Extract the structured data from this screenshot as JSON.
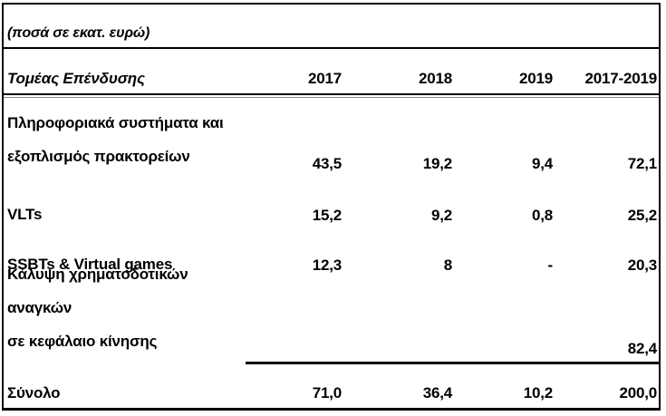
{
  "table": {
    "unit_note": "(ποσά σε εκατ. ευρώ)",
    "header": {
      "label": "Τομέας Επένδυσης",
      "columns": [
        "2017",
        "2018",
        "2019",
        "2017-2019"
      ]
    },
    "rows": [
      {
        "label_lines": [
          "Πληροφοριακά συστήματα και",
          "εξοπλισμός πρακτορείων"
        ],
        "values": [
          "43,5",
          "19,2",
          "9,4",
          "72,1"
        ]
      },
      {
        "label_lines": [
          "VLTs"
        ],
        "values": [
          "15,2",
          "9,2",
          "0,8",
          "25,2"
        ]
      },
      {
        "label_lines": [
          "SSBTs & Virtual games"
        ],
        "values": [
          "12,3",
          "8",
          "-",
          "20,3"
        ]
      },
      {
        "label_lines": [
          "Κάλυψη χρηματοδοτικών αναγκών",
          "σε κεφάλαιο κίνησης"
        ],
        "values": [
          "",
          "",
          "",
          "82,4"
        ]
      }
    ],
    "total": {
      "label": "Σύνολο",
      "values": [
        "71,0",
        "36,4",
        "10,2",
        "200,0"
      ]
    }
  },
  "colors": {
    "text": "#000000",
    "border": "#000000",
    "background": "#ffffff"
  },
  "chart_data": {
    "type": "table",
    "title": "(ποσά σε εκατ. ευρώ)",
    "row_header": "Τομέας Επένδυσης",
    "categories": [
      "2017",
      "2018",
      "2019",
      "2017-2019"
    ],
    "series": [
      {
        "name": "Πληροφοριακά συστήματα και εξοπλισμός πρακτορείων",
        "values": [
          43.5,
          19.2,
          9.4,
          72.1
        ]
      },
      {
        "name": "VLTs",
        "values": [
          15.2,
          9.2,
          0.8,
          25.2
        ]
      },
      {
        "name": "SSBTs & Virtual games",
        "values": [
          12.3,
          8,
          null,
          20.3
        ]
      },
      {
        "name": "Κάλυψη χρηματοδοτικών αναγκών σε κεφάλαιο κίνησης",
        "values": [
          null,
          null,
          null,
          82.4
        ]
      },
      {
        "name": "Σύνολο",
        "values": [
          71.0,
          36.4,
          10.2,
          200.0
        ]
      }
    ]
  }
}
